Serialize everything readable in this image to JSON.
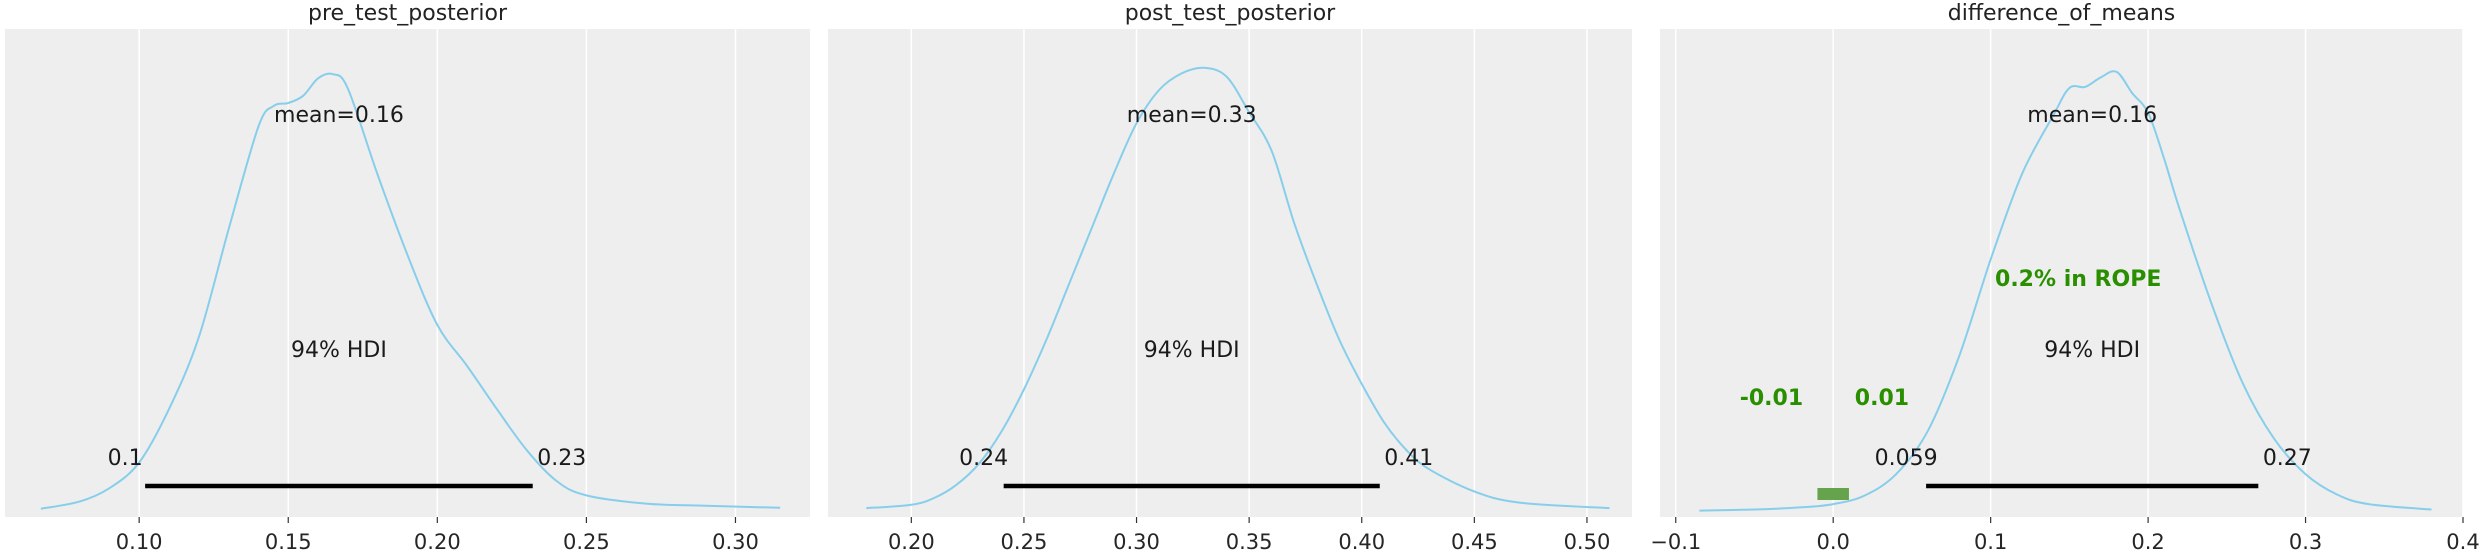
{
  "colors": {
    "panel_bg": "#eeeeee",
    "grid": "#ffffff",
    "density_line": "#87ceeb",
    "hdi_bar": "#000000",
    "rope": "#2a8f00",
    "rope_band": "#66a34d"
  },
  "chart_data": [
    {
      "type": "line",
      "title": "pre_test_posterior",
      "xlim": [
        0.055,
        0.325
      ],
      "xticks": [
        0.1,
        0.15,
        0.2,
        0.25,
        0.3
      ],
      "xtick_labels": [
        "0.10",
        "0.15",
        "0.20",
        "0.25",
        "0.30"
      ],
      "grid": true,
      "mean_label": "mean=0.16",
      "hdi_label": "94% HDI",
      "hdi": [
        0.102,
        0.232
      ],
      "hdi_low_label": "0.1",
      "hdi_high_label": "0.23",
      "density": {
        "x": [
          0.067,
          0.08,
          0.09,
          0.1,
          0.11,
          0.12,
          0.13,
          0.14,
          0.145,
          0.15,
          0.155,
          0.16,
          0.165,
          0.17,
          0.18,
          0.19,
          0.2,
          0.21,
          0.22,
          0.23,
          0.24,
          0.25,
          0.27,
          0.29,
          0.315
        ],
        "y": [
          0.03,
          0.1,
          0.23,
          0.48,
          1.0,
          1.7,
          2.75,
          3.75,
          3.95,
          3.98,
          4.05,
          4.22,
          4.26,
          4.12,
          3.28,
          2.5,
          1.82,
          1.42,
          1.0,
          0.6,
          0.3,
          0.16,
          0.08,
          0.06,
          0.04
        ],
        "ylim": [
          -0.05,
          4.7
        ]
      }
    },
    {
      "type": "line",
      "title": "post_test_posterior",
      "xlim": [
        0.163,
        0.52
      ],
      "xticks": [
        0.2,
        0.25,
        0.3,
        0.35,
        0.4,
        0.45,
        0.5
      ],
      "xtick_labels": [
        "0.20",
        "0.25",
        "0.30",
        "0.35",
        "0.40",
        "0.45",
        "0.50"
      ],
      "grid": true,
      "mean_label": "mean=0.33",
      "hdi_label": "94% HDI",
      "hdi": [
        0.241,
        0.408
      ],
      "hdi_low_label": "0.24",
      "hdi_high_label": "0.41",
      "density": {
        "x": [
          0.18,
          0.2,
          0.21,
          0.22,
          0.23,
          0.24,
          0.25,
          0.26,
          0.27,
          0.28,
          0.29,
          0.3,
          0.31,
          0.32,
          0.33,
          0.34,
          0.35,
          0.36,
          0.37,
          0.38,
          0.39,
          0.4,
          0.41,
          0.42,
          0.43,
          0.45,
          0.47,
          0.51
        ],
        "y": [
          0.03,
          0.06,
          0.12,
          0.24,
          0.43,
          0.72,
          1.1,
          1.55,
          2.05,
          2.55,
          3.05,
          3.5,
          3.8,
          3.95,
          4.0,
          3.92,
          3.6,
          3.25,
          2.6,
          2.05,
          1.55,
          1.15,
          0.8,
          0.55,
          0.38,
          0.18,
          0.08,
          0.03
        ],
        "ylim": [
          -0.05,
          4.35
        ]
      }
    },
    {
      "type": "line",
      "title": "difference_of_means",
      "xlim": [
        -0.11,
        0.4
      ],
      "xticks": [
        -0.1,
        0.0,
        0.1,
        0.2,
        0.3,
        0.4
      ],
      "xtick_labels": [
        "−0.1",
        "0.0",
        "0.1",
        "0.2",
        "0.3",
        "0.4"
      ],
      "grid": true,
      "mean_label": "mean=0.16",
      "hdi_label": "94% HDI",
      "hdi": [
        0.059,
        0.27
      ],
      "hdi_low_label": "0.059",
      "hdi_high_label": "0.27",
      "rope": [
        -0.01,
        0.01
      ],
      "rope_label": "0.2% in ROPE",
      "rope_low_label": "-0.01",
      "rope_high_label": "0.01",
      "density": {
        "x": [
          -0.085,
          -0.05,
          -0.02,
          0.0,
          0.02,
          0.04,
          0.06,
          0.08,
          0.1,
          0.12,
          0.14,
          0.15,
          0.16,
          0.17,
          0.18,
          0.19,
          0.2,
          0.21,
          0.22,
          0.24,
          0.26,
          0.28,
          0.3,
          0.32,
          0.34,
          0.38
        ],
        "y": [
          0.01,
          0.02,
          0.04,
          0.07,
          0.15,
          0.35,
          0.75,
          1.45,
          2.35,
          3.15,
          3.7,
          3.95,
          3.96,
          4.05,
          4.1,
          3.9,
          3.72,
          3.3,
          2.82,
          1.95,
          1.2,
          0.68,
          0.35,
          0.16,
          0.07,
          0.02
        ],
        "ylim": [
          -0.05,
          4.5
        ]
      }
    }
  ]
}
